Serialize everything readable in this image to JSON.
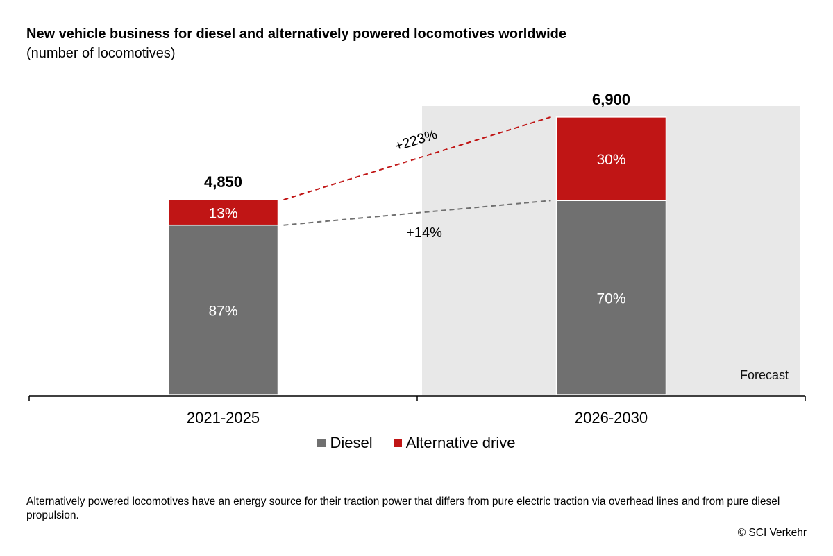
{
  "title": "New vehicle business for diesel and alternatively powered locomotives worldwide",
  "subtitle": "(number of locomotives)",
  "chart_data": {
    "type": "bar",
    "stacked": true,
    "categories": [
      "2021-2025",
      "2026-2030"
    ],
    "totals": [
      4850,
      6900
    ],
    "total_labels": [
      "4,850",
      "6,900"
    ],
    "series": [
      {
        "name": "Diesel",
        "color": "#707070",
        "share_percent": [
          87,
          70
        ],
        "labels": [
          "87%",
          "70%"
        ]
      },
      {
        "name": "Alternative drive",
        "color": "#c01515",
        "share_percent": [
          13,
          30
        ],
        "labels": [
          "13%",
          "30%"
        ]
      }
    ],
    "growth": [
      {
        "series": "Alternative drive",
        "label": "+223%",
        "color": "#c01515"
      },
      {
        "series": "Diesel",
        "label": "+14%",
        "color": "#707070"
      }
    ],
    "forecast_label": "Forecast",
    "forecast_category": "2026-2030",
    "ylim": [
      0,
      7500
    ],
    "legend_position": "bottom-center"
  },
  "footnote": "Alternatively powered locomotives have an energy source for their traction power that differs from pure electric traction via overhead lines and from pure diesel propulsion.",
  "copyright": "© SCI Verkehr"
}
